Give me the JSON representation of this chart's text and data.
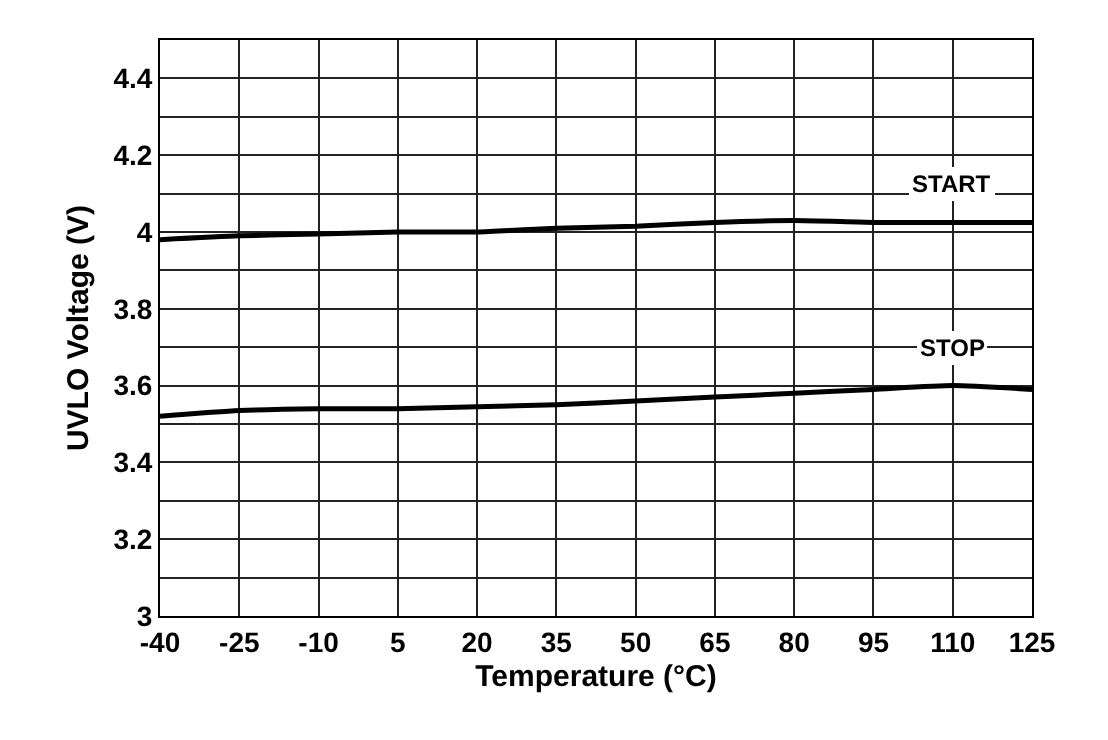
{
  "chart_data": {
    "type": "line",
    "xlabel": "Temperature (°C)",
    "ylabel": "UVLO Voltage (V)",
    "x": [
      -40,
      -25,
      -10,
      5,
      20,
      35,
      50,
      65,
      80,
      95,
      110,
      125
    ],
    "series": [
      {
        "name": "START",
        "color": "#000000",
        "values": [
          3.98,
          3.99,
          3.995,
          4.0,
          4.0,
          4.01,
          4.015,
          4.025,
          4.03,
          4.025,
          4.025,
          4.025
        ]
      },
      {
        "name": "STOP",
        "color": "#000000",
        "values": [
          3.52,
          3.535,
          3.54,
          3.54,
          3.545,
          3.55,
          3.56,
          3.57,
          3.58,
          3.59,
          3.6,
          3.59
        ]
      }
    ],
    "xlim": [
      -40,
      125
    ],
    "xticks": [
      -40,
      -25,
      -10,
      5,
      20,
      35,
      50,
      65,
      80,
      95,
      110,
      125
    ],
    "ylim": [
      3,
      4.5
    ],
    "yticks": [
      3,
      {
        "value": 3.1,
        "label": null
      },
      3.2,
      {
        "value": 3.3,
        "label": null
      },
      3.4,
      {
        "value": 3.5,
        "label": null
      },
      3.6,
      {
        "value": 3.7,
        "label": null
      },
      3.8,
      {
        "value": 3.9,
        "label": null
      },
      4,
      {
        "value": 4.1,
        "label": null
      },
      4.2,
      {
        "value": 4.3,
        "label": null
      },
      4.4,
      {
        "value": 4.5,
        "label": null
      }
    ],
    "grid": true,
    "legend": false,
    "marker": "none",
    "line_style": "solid"
  }
}
